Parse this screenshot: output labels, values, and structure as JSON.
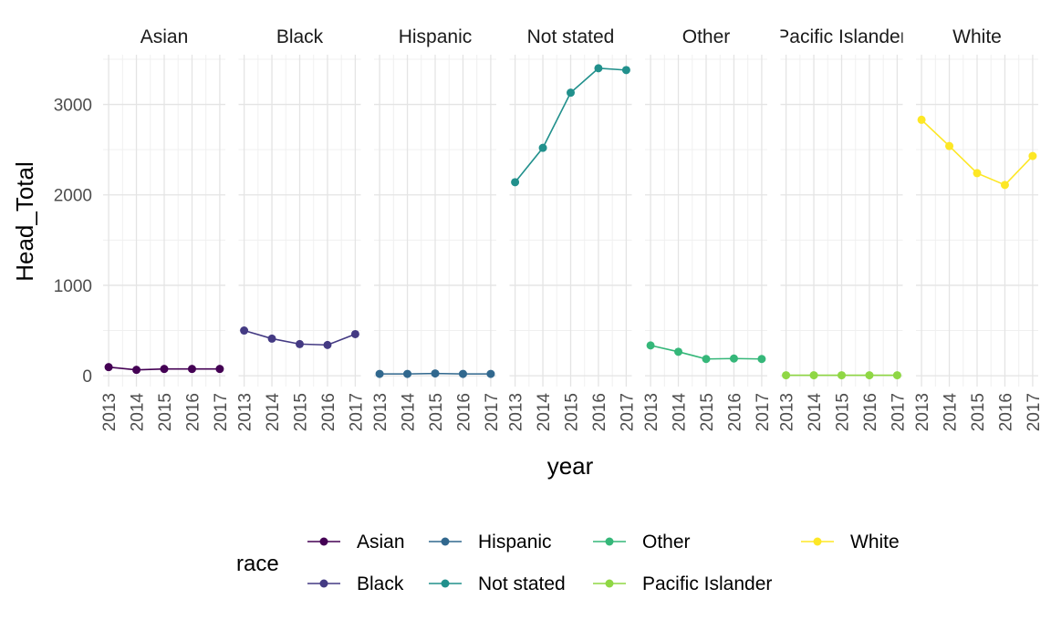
{
  "chart_data": {
    "type": "line",
    "facet_by": "race",
    "xlabel": "year",
    "ylabel": "Head_Total",
    "legend_title": "race",
    "legend_position": "bottom",
    "grid": true,
    "x": [
      2013,
      2014,
      2015,
      2016,
      2017
    ],
    "x_ticks": [
      "2013",
      "2014",
      "2015",
      "2016",
      "2017"
    ],
    "y_ticks": [
      "0",
      "1000",
      "2000",
      "3000"
    ],
    "y_tick_values": [
      0,
      1000,
      2000,
      3000
    ],
    "ylim": [
      -120,
      3550
    ],
    "xlim": [
      2012.8,
      2017.2
    ],
    "series": [
      {
        "name": "Asian",
        "color": "#440154",
        "values": [
          95,
          65,
          75,
          75,
          75
        ]
      },
      {
        "name": "Black",
        "color": "#443A83",
        "values": [
          500,
          410,
          350,
          340,
          460
        ]
      },
      {
        "name": "Hispanic",
        "color": "#31688E",
        "values": [
          20,
          20,
          25,
          20,
          20
        ]
      },
      {
        "name": "Not stated",
        "color": "#21908C",
        "values": [
          2140,
          2520,
          3130,
          3400,
          3380
        ]
      },
      {
        "name": "Other",
        "color": "#35B779",
        "values": [
          335,
          265,
          185,
          190,
          185
        ]
      },
      {
        "name": "Pacific Islander",
        "color": "#8FD744",
        "values": [
          5,
          5,
          5,
          5,
          5
        ]
      },
      {
        "name": "White",
        "color": "#FDE725",
        "values": [
          2830,
          2540,
          2240,
          2110,
          2430
        ]
      }
    ]
  }
}
